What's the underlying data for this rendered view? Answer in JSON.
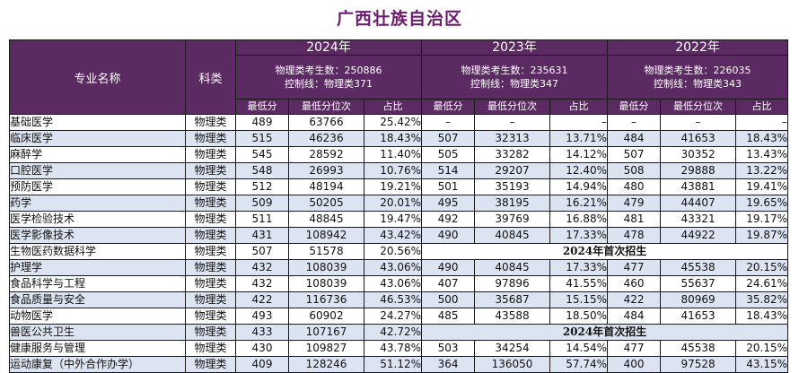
{
  "title": "广西壮族自治区",
  "header": {
    "major_label": "专业名称",
    "subject_label": "科类",
    "years": [
      {
        "year": "2024年",
        "info_line1": "物理类考生数：250886",
        "info_line2": "控制线：物理类371"
      },
      {
        "year": "2023年",
        "info_line1": "物理类考生数：235631",
        "info_line2": "控制线：物理类347"
      },
      {
        "year": "2022年",
        "info_line1": "物理类考生数：226035",
        "info_line2": "控制线：物理类343"
      }
    ],
    "col_min_score": "最低分",
    "col_min_rank": "最低分位次",
    "col_ratio": "占比"
  },
  "rows": [
    {
      "name": "基础医学",
      "subject": "物理类",
      "y2024": [
        "489",
        "63766",
        "25.42%"
      ],
      "y2023": [
        "–",
        "–",
        "–"
      ],
      "y2022": [
        "–",
        "–",
        "–"
      ]
    },
    {
      "name": "临床医学",
      "subject": "物理类",
      "y2024": [
        "515",
        "46236",
        "18.43%"
      ],
      "y2023": [
        "507",
        "32313",
        "13.71%"
      ],
      "y2022": [
        "484",
        "41653",
        "18.43%"
      ]
    },
    {
      "name": "麻醉学",
      "subject": "物理类",
      "y2024": [
        "545",
        "28592",
        "11.40%"
      ],
      "y2023": [
        "505",
        "33282",
        "14.12%"
      ],
      "y2022": [
        "507",
        "30352",
        "13.43%"
      ]
    },
    {
      "name": "口腔医学",
      "subject": "物理类",
      "y2024": [
        "548",
        "26993",
        "10.76%"
      ],
      "y2023": [
        "514",
        "29207",
        "12.40%"
      ],
      "y2022": [
        "508",
        "29888",
        "13.22%"
      ]
    },
    {
      "name": "预防医学",
      "subject": "物理类",
      "y2024": [
        "512",
        "48194",
        "19.21%"
      ],
      "y2023": [
        "501",
        "35193",
        "14.94%"
      ],
      "y2022": [
        "480",
        "43881",
        "19.41%"
      ]
    },
    {
      "name": "药学",
      "subject": "物理类",
      "y2024": [
        "509",
        "50205",
        "20.01%"
      ],
      "y2023": [
        "495",
        "38195",
        "16.21%"
      ],
      "y2022": [
        "479",
        "44407",
        "19.65%"
      ]
    },
    {
      "name": "医学检验技术",
      "subject": "物理类",
      "y2024": [
        "511",
        "48845",
        "19.47%"
      ],
      "y2023": [
        "492",
        "39769",
        "16.88%"
      ],
      "y2022": [
        "481",
        "43321",
        "19.17%"
      ]
    },
    {
      "name": "医学影像技术",
      "subject": "物理类",
      "y2024": [
        "431",
        "108942",
        "43.42%"
      ],
      "y2023": [
        "490",
        "40845",
        "17.33%"
      ],
      "y2022": [
        "478",
        "44922",
        "19.87%"
      ]
    },
    {
      "name": "生物医药数据科学",
      "subject": "物理类",
      "y2024": [
        "507",
        "51578",
        "20.56%"
      ],
      "note": "2024年首次招生"
    },
    {
      "name": "护理学",
      "subject": "物理类",
      "y2024": [
        "432",
        "108039",
        "43.06%"
      ],
      "y2023": [
        "490",
        "40845",
        "17.33%"
      ],
      "y2022": [
        "477",
        "45538",
        "20.15%"
      ]
    },
    {
      "name": "食品科学与工程",
      "subject": "物理类",
      "y2024": [
        "432",
        "108039",
        "43.06%"
      ],
      "y2023": [
        "407",
        "97896",
        "41.55%"
      ],
      "y2022": [
        "460",
        "55637",
        "24.61%"
      ]
    },
    {
      "name": "食品质量与安全",
      "subject": "物理类",
      "y2024": [
        "422",
        "116736",
        "46.53%"
      ],
      "y2023": [
        "500",
        "35687",
        "15.15%"
      ],
      "y2022": [
        "422",
        "80969",
        "35.82%"
      ]
    },
    {
      "name": "动物医学",
      "subject": "物理类",
      "y2024": [
        "493",
        "60902",
        "24.27%"
      ],
      "y2023": [
        "485",
        "43588",
        "18.50%"
      ],
      "y2022": [
        "484",
        "41653",
        "18.43%"
      ]
    },
    {
      "name": "兽医公共卫生",
      "subject": "物理类",
      "y2024": [
        "433",
        "107167",
        "42.72%"
      ],
      "note": "2024年首次招生"
    },
    {
      "name": "健康服务与管理",
      "subject": "物理类",
      "y2024": [
        "430",
        "109827",
        "43.78%"
      ],
      "y2023": [
        "503",
        "34254",
        "14.54%"
      ],
      "y2022": [
        "477",
        "45538",
        "20.15%"
      ]
    },
    {
      "name": "运动康复（中外合作办学）",
      "subject": "物理类",
      "y2024": [
        "409",
        "128246",
        "51.12%"
      ],
      "y2023": [
        "364",
        "136050",
        "57.74%"
      ],
      "y2022": [
        "400",
        "97528",
        "43.15%"
      ]
    }
  ]
}
